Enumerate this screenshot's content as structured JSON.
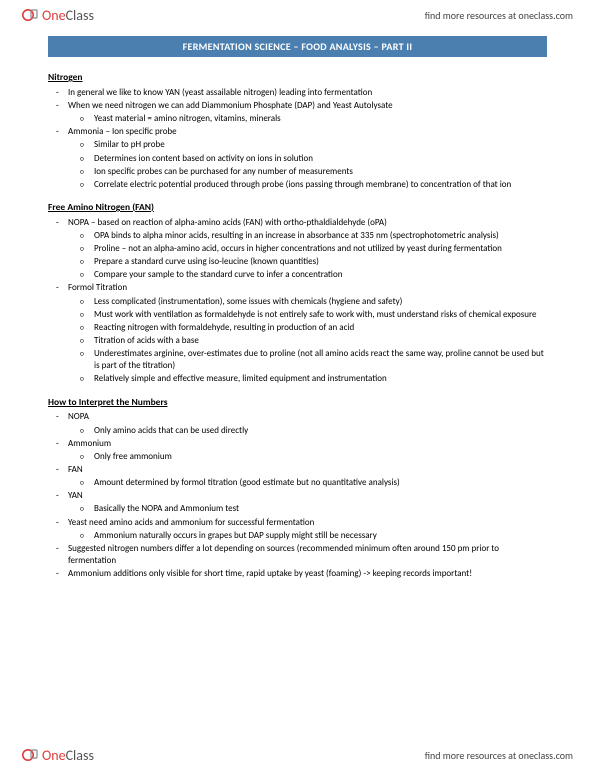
{
  "header": {
    "brand_one": "One",
    "brand_class": "Class",
    "link_text": "find more resources at oneclass.com",
    "logo_color_circle": "#e03a3a",
    "logo_color_page": "#888888"
  },
  "title": "FERMENTATION  SCIENCE – FOOD  ANALYSIS – PART  II",
  "title_bg": "#4a7fb0",
  "sections": [
    {
      "heading": "Nitrogen",
      "items": [
        {
          "text": "In general we like to know YAN (yeast assailable nitrogen) leading into fermentation"
        },
        {
          "text": "When we need nitrogen we can add Diammonium Phosphate (DAP) and Yeast Autolysate",
          "sub": [
            "Yeast material = amino nitrogen, vitamins, minerals"
          ]
        },
        {
          "text": "Ammonia – Ion specific probe",
          "sub": [
            "Similar to pH probe",
            "Determines ion content based on activity on ions in solution",
            "Ion specific probes can be purchased for any number of measurements",
            "Correlate electric potential produced through probe (ions passing through membrane) to concentration of that ion"
          ]
        }
      ]
    },
    {
      "heading": "Free Amino Nitrogen (FAN)",
      "items": [
        {
          "text": "NOPA – based on reaction of alpha-amino acids (FAN) with ortho-pthaldialdehyde (oPA)",
          "sub": [
            "OPA binds to alpha minor acids, resulting in an increase in absorbance at 335 nm (spectrophotometric analysis)",
            "Proline – not an alpha-amino acid, occurs in higher concentrations and not utilized by yeast during fermentation",
            "Prepare a standard curve using iso-leucine (known quantities)",
            "Compare your sample to the standard curve to infer a concentration"
          ]
        },
        {
          "text": "Formol Titration",
          "sub": [
            "Less complicated (instrumentation), some issues with chemicals (hygiene and safety)",
            "Must work with ventilation as formaldehyde is not entirely safe to work with, must understand risks of chemical exposure",
            "Reacting nitrogen with formaldehyde, resulting in production of an acid",
            "Titration of acids with a base",
            "Underestimates arginine, over-estimates due to proline (not all amino acids react the same way, proline cannot be used but is part of the titration)",
            "Relatively simple and effective measure, limited equipment and instrumentation"
          ]
        }
      ]
    },
    {
      "heading": "How to Interpret the Numbers",
      "items": [
        {
          "text": "NOPA",
          "sub": [
            "Only amino acids that can be used directly"
          ]
        },
        {
          "text": "Ammonium",
          "sub": [
            "Only free ammonium"
          ]
        },
        {
          "text": "FAN",
          "sub": [
            "Amount determined by formol titration (good estimate but no quantitative analysis)"
          ]
        },
        {
          "text": "YAN",
          "sub": [
            "Basically the NOPA and Ammonium test"
          ]
        },
        {
          "text": "Yeast need amino acids and ammonium for successful fermentation",
          "sub": [
            "Ammonium naturally occurs in grapes but DAP supply might still be necessary"
          ]
        },
        {
          "text": "Suggested nitrogen numbers differ a lot depending on sources (recommended minimum often around 150 pm prior to fermentation"
        },
        {
          "text": "Ammonium additions only visible for short time, rapid uptake by yeast (foaming) -> keeping records important!"
        }
      ]
    }
  ],
  "footer": {
    "link_text": "find more resources at oneclass.com"
  }
}
